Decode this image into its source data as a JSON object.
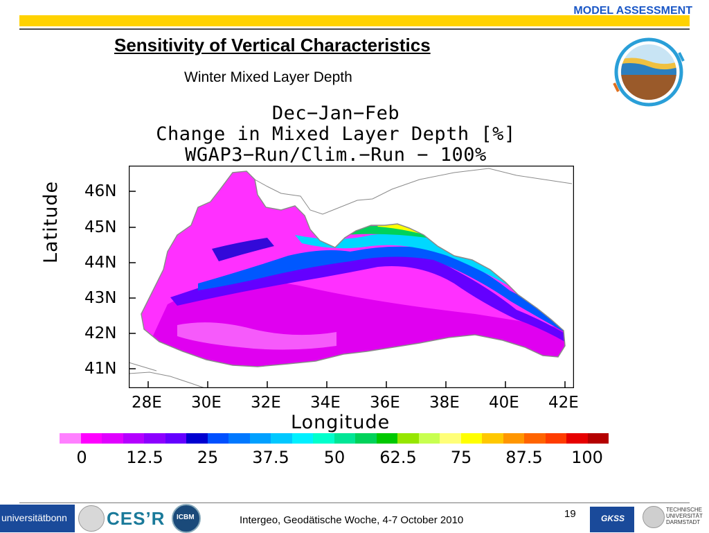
{
  "header": {
    "section_label": "MODEL ASSESSMENT",
    "title": "Sensitivity of Vertical Characteristics",
    "subtitle": "Winter Mixed Layer Depth"
  },
  "figure": {
    "title_lines": [
      "Dec−Jan−Feb",
      "Change in Mixed Layer Depth [%]",
      "WGAP3−Run/Clim.−Run − 100%"
    ],
    "ylabel": "Latitude",
    "xlabel": "Longitude",
    "y_ticks": [
      "46N",
      "45N",
      "44N",
      "43N",
      "42N",
      "41N"
    ],
    "x_ticks": [
      "28E",
      "30E",
      "32E",
      "34E",
      "36E",
      "38E",
      "40E",
      "42E"
    ]
  },
  "chart_data": {
    "type": "heatmap",
    "title": "Dec−Jan−Feb Change in Mixed Layer Depth [%] WGAP3−Run/Clim.−Run − 100%",
    "xlabel": "Longitude",
    "ylabel": "Latitude",
    "x_ticks": [
      "28E",
      "30E",
      "32E",
      "34E",
      "36E",
      "38E",
      "40E",
      "42E"
    ],
    "y_ticks": [
      "46N",
      "45N",
      "44N",
      "43N",
      "42N",
      "41N"
    ],
    "colorbar": {
      "ticks": [
        "0",
        "12.5",
        "25",
        "37.5",
        "50",
        "62.5",
        "75",
        "87.5",
        "100"
      ],
      "range": [
        0,
        100
      ],
      "colors": [
        "#ff80ff",
        "#ff00ff",
        "#e000ff",
        "#b400ff",
        "#8c00ff",
        "#6400ff",
        "#0000d0",
        "#0050ff",
        "#0078ff",
        "#00a0ff",
        "#00c8ff",
        "#00f0ff",
        "#00ffcc",
        "#00e696",
        "#00d25a",
        "#00c800",
        "#96e600",
        "#c8ff50",
        "#ffff78",
        "#ffff00",
        "#ffc800",
        "#ff9600",
        "#ff6400",
        "#ff3c00",
        "#e60000",
        "#b40000"
      ]
    }
  },
  "footer": {
    "text": "Intergeo, Geodätische Woche, 4-7 October 2010",
    "page_number": "19",
    "logos": {
      "bonn": "universitätbonn",
      "cesr": "CES’R",
      "icbm": "ICBM",
      "gkss": "GKSS",
      "tu": [
        "TECHNISCHE",
        "UNIVERSITÄT",
        "DARMSTADT"
      ]
    }
  }
}
